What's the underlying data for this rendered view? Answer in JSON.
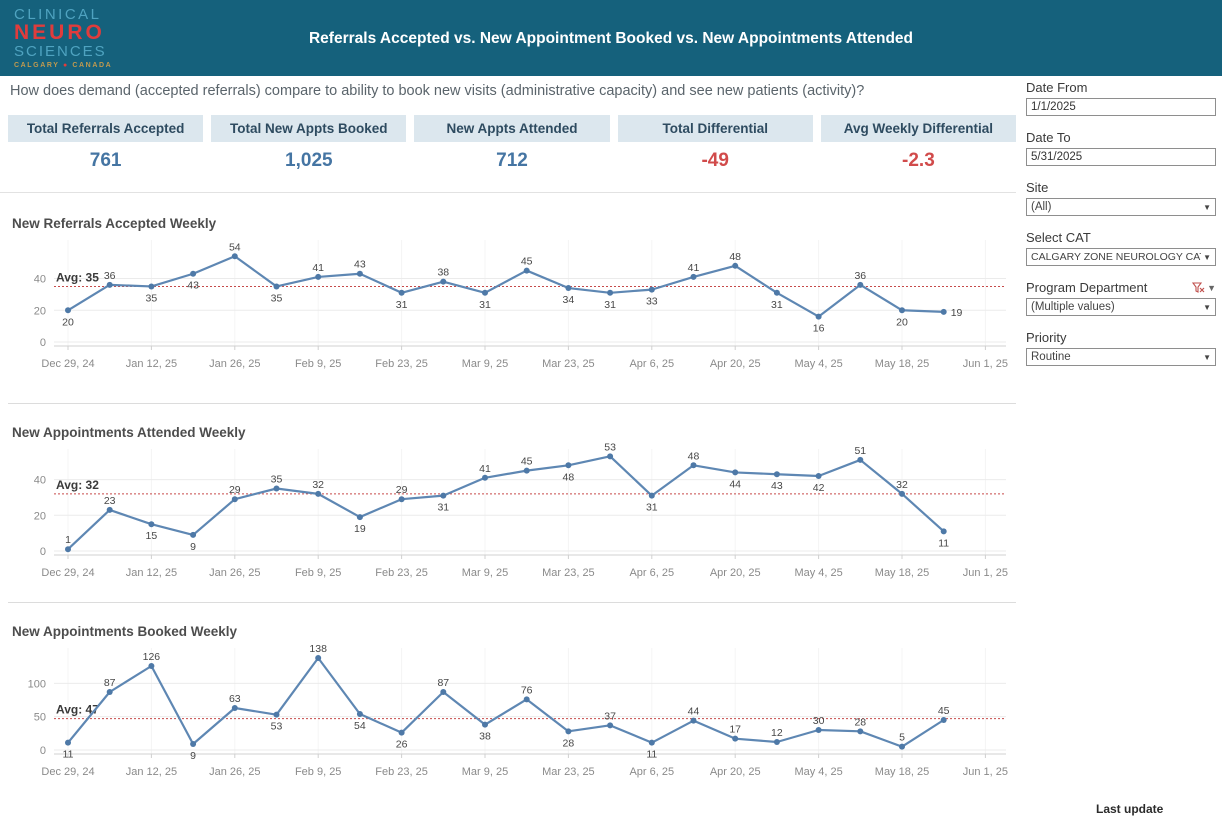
{
  "header": {
    "title": "Referrals Accepted  vs. New Appointment Booked vs. New Appointments Attended",
    "logo": {
      "line1": "CLINICAL",
      "line2": "NEURO",
      "line3": "SCIENCES",
      "tagline_left": "CALGARY",
      "tagline_dot": "●",
      "tagline_right": "CANADA"
    }
  },
  "subtitle": "How does demand (accepted referrals) compare to ability to book new visits (administrative capacity) and see new patients (activity)?",
  "kpis": [
    {
      "label": "Total Referrals Accepted",
      "value": "761",
      "color": "blue"
    },
    {
      "label": "Total New Appts Booked",
      "value": "1,025",
      "color": "blue"
    },
    {
      "label": "New Appts Attended",
      "value": "712",
      "color": "blue"
    },
    {
      "label": "Total Differential",
      "value": "-49",
      "color": "red"
    },
    {
      "label": "Avg Weekly Differential",
      "value": "-2.3",
      "color": "red"
    }
  ],
  "filters": [
    {
      "label": "Date From",
      "type": "input",
      "value": "1/1/2025"
    },
    {
      "label": "Date To",
      "type": "input",
      "value": "5/31/2025"
    },
    {
      "label": "Site",
      "type": "dropdown",
      "value": "(All)"
    },
    {
      "label": "Select CAT",
      "type": "dropdown",
      "value": "CALGARY ZONE NEUROLOGY CAT"
    },
    {
      "label": "Program Department",
      "type": "dropdown",
      "value": "(Multiple values)",
      "has_filter_icon": true
    },
    {
      "label": "Priority",
      "type": "dropdown",
      "value": "Routine"
    }
  ],
  "footer": {
    "last_update_label": "Last update"
  },
  "colors": {
    "banner_bg": "#15617c",
    "blue": "#4575a3",
    "red": "#d14b4b",
    "line": "#5e87b3",
    "marker": "#4e79a7",
    "avg_line": "#c64a4a",
    "grid": "#ebebeb",
    "vgrid": "#f4f4f4",
    "axis_text": "#8a8a8a",
    "data_label": "#474747",
    "domain_line": "#d0d0d0"
  },
  "chart_data": [
    {
      "type": "line",
      "title": "New Referrals Accepted Weekly",
      "x_tick_labels": [
        "Dec 29, 24",
        "Jan 12, 25",
        "Jan 26, 25",
        "Feb 9, 25",
        "Feb 23, 25",
        "Mar 9, 25",
        "Mar 23, 25",
        "Apr 6, 25",
        "Apr 20, 25",
        "May 4, 25",
        "May 18, 25",
        "Jun 1, 25"
      ],
      "weeks_per_point": 1,
      "values": [
        20,
        36,
        35,
        43,
        54,
        35,
        41,
        43,
        31,
        38,
        31,
        45,
        34,
        31,
        33,
        41,
        48,
        31,
        16,
        36,
        20,
        19
      ],
      "label_side": [
        "below",
        "above",
        "below",
        "below",
        "above",
        "below",
        "above",
        "above",
        "below",
        "above",
        "below",
        "above",
        "below",
        "below",
        "below",
        "above",
        "above",
        "below",
        "below",
        "above",
        "below",
        "right"
      ],
      "avg": 35,
      "avg_label": "Avg: 35",
      "yticks": [
        0,
        20,
        40
      ],
      "ylim": [
        0,
        63
      ],
      "xlabel": "",
      "ylabel": "",
      "legend": "none",
      "grid": "on"
    },
    {
      "type": "line",
      "title": "New Appointments Attended Weekly",
      "x_tick_labels": [
        "Dec 29, 24",
        "Jan 12, 25",
        "Jan 26, 25",
        "Feb 9, 25",
        "Feb 23, 25",
        "Mar 9, 25",
        "Mar 23, 25",
        "Apr 6, 25",
        "Apr 20, 25",
        "May 4, 25",
        "May 18, 25",
        "Jun 1, 25"
      ],
      "weeks_per_point": 1,
      "values": [
        1,
        23,
        15,
        9,
        29,
        35,
        32,
        19,
        29,
        31,
        41,
        45,
        48,
        53,
        31,
        48,
        44,
        43,
        42,
        51,
        32,
        11
      ],
      "label_side": [
        "above",
        "above",
        "below",
        "below",
        "above",
        "above",
        "above",
        "below",
        "above",
        "below",
        "above",
        "above",
        "below",
        "above",
        "below",
        "above",
        "below",
        "below",
        "below",
        "above",
        "above",
        "below"
      ],
      "avg": 32,
      "avg_label": "Avg: 32",
      "yticks": [
        0,
        20,
        40
      ],
      "ylim": [
        0,
        56
      ],
      "xlabel": "",
      "ylabel": "",
      "legend": "none",
      "grid": "on"
    },
    {
      "type": "line",
      "title": "New Appointments Booked Weekly",
      "x_tick_labels": [
        "Dec 29, 24",
        "Jan 12, 25",
        "Jan 26, 25",
        "Feb 9, 25",
        "Feb 23, 25",
        "Mar 9, 25",
        "Mar 23, 25",
        "Apr 6, 25",
        "Apr 20, 25",
        "May 4, 25",
        "May 18, 25",
        "Jun 1, 25"
      ],
      "weeks_per_point": 1,
      "values": [
        11,
        87,
        126,
        9,
        63,
        53,
        138,
        54,
        26,
        87,
        38,
        76,
        28,
        37,
        11,
        44,
        17,
        12,
        30,
        28,
        5,
        45
      ],
      "label_side": [
        "below",
        "above",
        "above",
        "below",
        "above",
        "below",
        "above",
        "below",
        "below",
        "above",
        "below",
        "above",
        "below",
        "above",
        "below",
        "above",
        "above",
        "above",
        "above",
        "above",
        "above",
        "above"
      ],
      "avg": 47,
      "avg_label": "Avg: 47",
      "yticks": [
        0,
        50,
        100
      ],
      "ylim": [
        0,
        150
      ],
      "xlabel": "",
      "ylabel": "",
      "legend": "none",
      "grid": "on"
    }
  ]
}
